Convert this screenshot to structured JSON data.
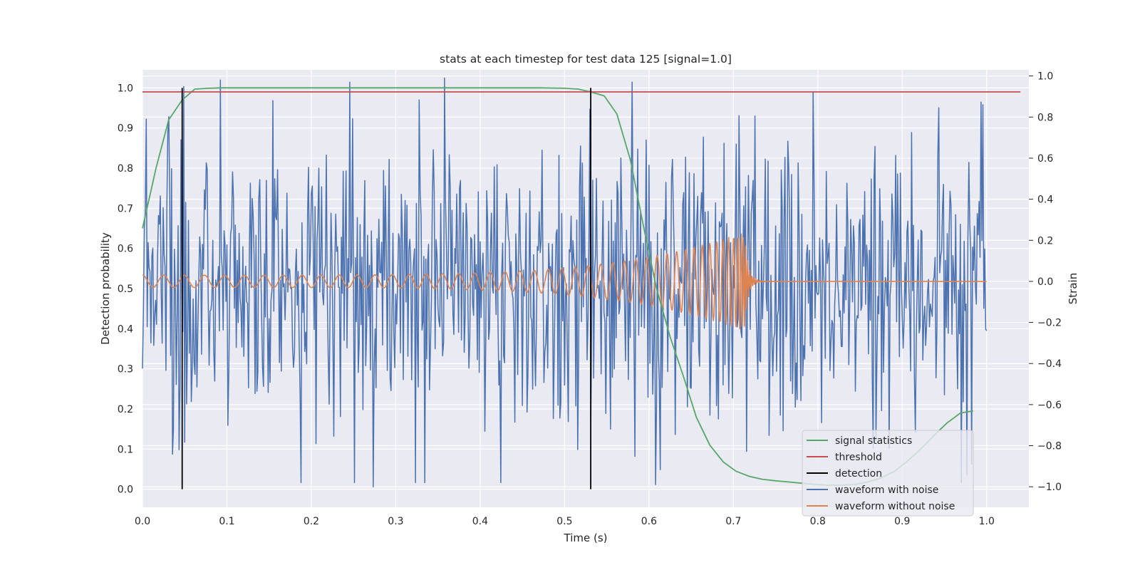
{
  "chart_data": {
    "type": "line",
    "title": "stats at each timestep for test data 125 [signal=1.0]",
    "xlabel": "Time (s)",
    "ylabel": "Detection probability",
    "y2label": "Strain",
    "xlim": [
      0.0,
      1.05
    ],
    "ylim": [
      -0.045,
      1.045
    ],
    "y2lim": [
      -1.1,
      1.03
    ],
    "xticks": [
      "0.0",
      "0.1",
      "0.2",
      "0.3",
      "0.4",
      "0.5",
      "0.6",
      "0.7",
      "0.8",
      "0.9",
      "1.0"
    ],
    "xtick_values": [
      0.0,
      0.1,
      0.2,
      0.3,
      0.4,
      0.5,
      0.6,
      0.7,
      0.8,
      0.9,
      1.0
    ],
    "yticks": [
      "0.0",
      "0.1",
      "0.2",
      "0.3",
      "0.4",
      "0.5",
      "0.6",
      "0.7",
      "0.8",
      "0.9",
      "1.0"
    ],
    "ytick_values": [
      0.0,
      0.1,
      0.2,
      0.3,
      0.4,
      0.5,
      0.6,
      0.7,
      0.8,
      0.9,
      1.0
    ],
    "y2ticks": [
      "−1.0",
      "−0.8",
      "−0.6",
      "−0.4",
      "−0.2",
      "0.0",
      "0.2",
      "0.4",
      "0.6",
      "0.8",
      "1.0"
    ],
    "y2tick_values": [
      -1.0,
      -0.8,
      -0.6,
      -0.4,
      -0.2,
      0.0,
      0.2,
      0.4,
      0.6,
      0.8,
      1.0
    ],
    "grid": true,
    "legend_position": "lower-right",
    "series": [
      {
        "name": "signal statistics",
        "axis": "left",
        "color": "#55a868",
        "x": [
          0.0,
          0.016,
          0.031,
          0.047,
          0.062,
          0.078,
          0.094,
          0.2,
          0.3,
          0.4,
          0.47,
          0.5,
          0.516,
          0.531,
          0.547,
          0.562,
          0.578,
          0.594,
          0.609,
          0.625,
          0.641,
          0.656,
          0.672,
          0.688,
          0.703,
          0.719,
          0.734,
          0.75,
          0.766,
          0.781,
          0.797,
          0.812,
          0.828,
          0.844,
          0.859,
          0.875,
          0.891,
          0.906,
          0.922,
          0.938,
          0.953,
          0.969,
          0.984
        ],
        "y": [
          0.65,
          0.8,
          0.92,
          0.97,
          0.997,
          0.999,
          1.0,
          1.0,
          1.0,
          1.0,
          1.0,
          0.999,
          0.997,
          0.99,
          0.98,
          0.935,
          0.82,
          0.65,
          0.5,
          0.38,
          0.28,
          0.18,
          0.11,
          0.068,
          0.045,
          0.032,
          0.025,
          0.021,
          0.018,
          0.015,
          0.012,
          0.01,
          0.01,
          0.012,
          0.018,
          0.028,
          0.045,
          0.07,
          0.1,
          0.135,
          0.165,
          0.19,
          0.195
        ]
      },
      {
        "name": "threshold",
        "axis": "left",
        "color": "#c44e52",
        "x": [
          0.0,
          1.04
        ],
        "y": [
          0.99,
          0.99
        ]
      },
      {
        "name": "detection",
        "axis": "left",
        "color": "#000000",
        "x": [
          0.047,
          0.531
        ],
        "y_range": [
          0.0,
          1.0
        ]
      },
      {
        "name": "waveform with noise",
        "axis": "right",
        "color": "#4c72b0",
        "x_range": [
          0.0,
          1.0
        ],
        "sample_count": 900,
        "peaks": [
          {
            "x": 0.004,
            "y": 0.79
          },
          {
            "x": 0.043,
            "y": -0.82
          },
          {
            "x": 0.092,
            "y": 0.98
          },
          {
            "x": 0.154,
            "y": 0.88
          },
          {
            "x": 0.273,
            "y": -1.0
          },
          {
            "x": 0.358,
            "y": 0.99
          },
          {
            "x": 0.608,
            "y": -0.99
          },
          {
            "x": 0.995,
            "y": 0.86
          }
        ]
      },
      {
        "name": "waveform without noise",
        "axis": "right",
        "color": "#dd8452",
        "x_range": [
          0.0,
          1.0
        ],
        "chirp_merger_time": 0.713,
        "start_amplitude": 0.03,
        "peak_amplitude": 0.24,
        "start_frequency_hz": 40
      }
    ]
  }
}
